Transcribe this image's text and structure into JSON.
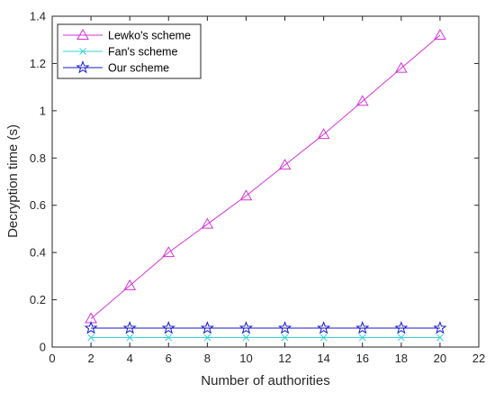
{
  "chart_data": {
    "type": "line",
    "xlabel": "Number of authorities",
    "ylabel": "Decryption time (s)",
    "xlim": [
      0,
      22
    ],
    "ylim": [
      0,
      1.4
    ],
    "xticks": [
      0,
      2,
      4,
      6,
      8,
      10,
      12,
      14,
      16,
      18,
      20,
      22
    ],
    "yticks": [
      0,
      0.2,
      0.4,
      0.6,
      0.8,
      1,
      1.2,
      1.4
    ],
    "grid": false,
    "legend_position": "top-left",
    "x": [
      2,
      4,
      6,
      8,
      10,
      12,
      14,
      16,
      18,
      20
    ],
    "series": [
      {
        "name": "Lewko's scheme",
        "color": "#d633d6",
        "marker": "triangle",
        "values": [
          0.12,
          0.26,
          0.4,
          0.52,
          0.64,
          0.77,
          0.9,
          1.04,
          1.18,
          1.32
        ]
      },
      {
        "name": "Fan's scheme",
        "color": "#33d6d6",
        "marker": "x",
        "values": [
          0.04,
          0.04,
          0.04,
          0.04,
          0.04,
          0.04,
          0.04,
          0.04,
          0.04,
          0.04
        ]
      },
      {
        "name": "Our scheme",
        "color": "#1a1acc",
        "marker": "star",
        "values": [
          0.08,
          0.08,
          0.08,
          0.08,
          0.08,
          0.08,
          0.08,
          0.08,
          0.08,
          0.08
        ]
      }
    ]
  }
}
